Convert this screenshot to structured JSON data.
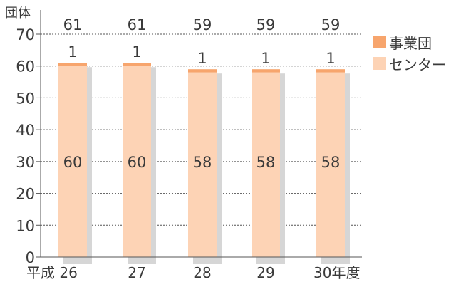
{
  "chart_data": {
    "type": "bar",
    "stacked": true,
    "ylabel": "団体",
    "xlabel": "",
    "ylim": [
      0,
      70
    ],
    "yticks": [
      0,
      10,
      20,
      30,
      40,
      50,
      60,
      70
    ],
    "grid": true,
    "legend_position": "right",
    "categories": [
      "平成 26",
      "27",
      "28",
      "29",
      "30年度"
    ],
    "series": [
      {
        "name": "センター",
        "values": [
          60,
          60,
          58,
          58,
          58
        ],
        "color": "#fdd3b5"
      },
      {
        "name": "事業団",
        "values": [
          1,
          1,
          1,
          1,
          1
        ],
        "color": "#f7a56d"
      }
    ],
    "totals": [
      61,
      61,
      59,
      59,
      59
    ],
    "shadow_color": "#d6d6d6"
  },
  "legend": [
    {
      "label": "事業団",
      "color": "#f7a56d"
    },
    {
      "label": "センター",
      "color": "#fdd3b5"
    }
  ]
}
